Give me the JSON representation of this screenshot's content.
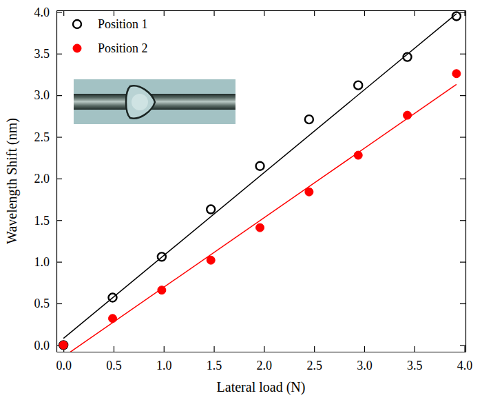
{
  "chart_data": {
    "type": "scatter",
    "x_label": "Lateral load (N)",
    "y_label": "Wavelength Shift (nm)",
    "x": [
      0,
      0.49,
      0.98,
      1.47,
      1.96,
      2.45,
      2.94,
      3.43,
      3.92
    ],
    "series": [
      {
        "name": "Position 1",
        "color": "#000000",
        "marker": "open-circle",
        "values": [
          0,
          0.57,
          1.06,
          1.63,
          2.15,
          2.71,
          3.12,
          3.46,
          3.95
        ],
        "fit": {
          "x": [
            0,
            3.92
          ],
          "values": [
            0.08,
            3.98
          ]
        }
      },
      {
        "name": "Position 2",
        "color": "#ff0000",
        "marker": "circle",
        "values": [
          0,
          0.32,
          0.66,
          1.02,
          1.41,
          1.84,
          2.28,
          2.76,
          3.26
        ],
        "fit": {
          "x": [
            0,
            3.92
          ],
          "values": [
            -0.14,
            3.13
          ]
        }
      }
    ],
    "xlim": [
      -0.07,
      4.01
    ],
    "ylim": [
      -0.08,
      4.02
    ],
    "xticks": [
      {
        "value": 0,
        "label": "0.0"
      },
      0.5,
      {
        "value": 1,
        "label": "1.0"
      },
      1.5,
      {
        "value": 2,
        "label": "2.0"
      },
      2.5,
      {
        "value": 3,
        "label": "3.0"
      },
      3.5,
      {
        "value": 4,
        "label": "4.0"
      }
    ],
    "yticks": [
      {
        "value": 0,
        "label": "0.0"
      },
      0.5,
      {
        "value": 1,
        "label": "1.0"
      },
      1.5,
      {
        "value": 2,
        "label": "2.0"
      },
      2.5,
      {
        "value": 3,
        "label": "3.0"
      },
      3.5,
      {
        "value": 4,
        "label": "4.0"
      }
    ],
    "grid": false,
    "legend": "upper left"
  }
}
